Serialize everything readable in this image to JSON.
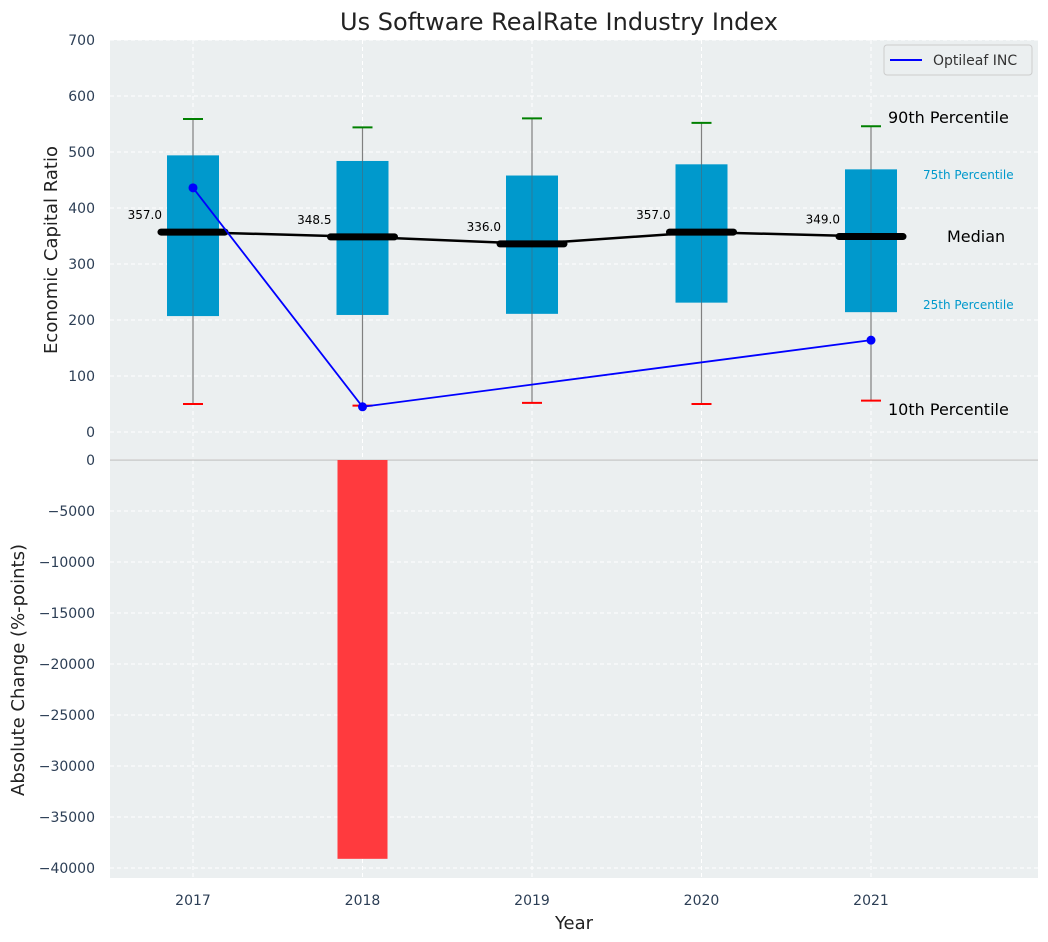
{
  "chart_data": [
    {
      "type": "box",
      "title": "Us Software RealRate Industry Index",
      "ylabel": "Economic Capital Ratio",
      "ylim": [
        -50,
        700
      ],
      "yticks": [
        0,
        100,
        200,
        300,
        400,
        500,
        600,
        700
      ],
      "grid": true,
      "legend": {
        "position": "top-right",
        "entries": [
          "Optileaf INC"
        ]
      },
      "categories": [
        "2017",
        "2018",
        "2019",
        "2020",
        "2021"
      ],
      "percentiles": {
        "p10": [
          50,
          47,
          52,
          50,
          56
        ],
        "p25": [
          207,
          209,
          211,
          231,
          214
        ],
        "median": [
          357.0,
          348.5,
          336.0,
          357.0,
          349.0
        ],
        "p75": [
          494,
          484,
          458,
          478,
          469
        ],
        "p90": [
          559,
          544,
          560,
          552,
          546
        ]
      },
      "median_labels": [
        "357.0",
        "348.5",
        "336.0",
        "357.0",
        "349.0"
      ],
      "series": [
        {
          "name": "Optileaf INC",
          "x": [
            "2017",
            "2018",
            "2021"
          ],
          "values": [
            436,
            45,
            164
          ]
        }
      ],
      "annotations": {
        "p90": "90th Percentile",
        "p75": "75th Percentile",
        "median": "Median",
        "p25": "25th Percentile",
        "p10": "10th Percentile"
      },
      "colors": {
        "box": "#0099cc",
        "company": "#0000ff",
        "p90_cap": "#008000",
        "p10_cap": "#ff0000",
        "median": "#000000",
        "background": "#ebeff0"
      }
    },
    {
      "type": "bar",
      "xlabel": "Year",
      "ylabel": "Absolute Change (%-points)",
      "categories": [
        "2017",
        "2018",
        "2019",
        "2020",
        "2021"
      ],
      "values": [
        0,
        -39100,
        0,
        0,
        0
      ],
      "ylim": [
        -41000,
        0
      ],
      "yticks": [
        0,
        -5000,
        -10000,
        -15000,
        -20000,
        -25000,
        -30000,
        -35000,
        -40000
      ],
      "ytick_labels": [
        "0",
        "−5000",
        "−10000",
        "−15000",
        "−20000",
        "−25000",
        "−30000",
        "−35000",
        "−40000"
      ],
      "grid": true,
      "colors": {
        "negative": "#ff3a3e"
      }
    }
  ]
}
